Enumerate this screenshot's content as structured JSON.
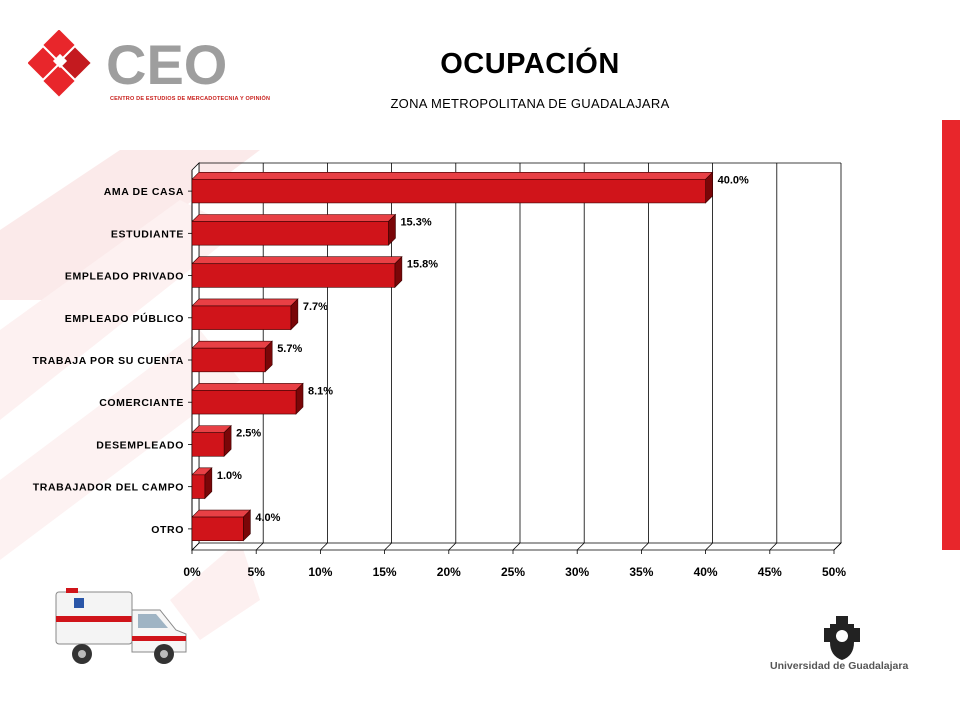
{
  "header": {
    "logo_text": "CEO",
    "logo_subtitle": "CENTRO DE ESTUDIOS DE MERCADOTECNIA Y OPINIÓN",
    "title": "OCUPACIÓN",
    "subtitle": "ZONA METROPOLITANA DE GUADALAJARA"
  },
  "footer": {
    "university": "Universidad de Guadalajara",
    "ambulance_icon": "ambulance-image",
    "crest_icon": "university-crest-icon"
  },
  "colors": {
    "bar": "#d0141a",
    "bar_dark": "#7a0608",
    "accent": "#e8262b"
  },
  "chart_data": {
    "type": "bar",
    "orientation": "horizontal",
    "categories": [
      "AMA DE CASA",
      "ESTUDIANTE",
      "EMPLEADO PRIVADO",
      "EMPLEADO PÚBLICO",
      "TRABAJA POR SU CUENTA",
      "COMERCIANTE",
      "DESEMPLEADO",
      "TRABAJADOR DEL CAMPO",
      "OTRO"
    ],
    "values": [
      40.0,
      15.3,
      15.8,
      7.7,
      5.7,
      8.1,
      2.5,
      1.0,
      4.0
    ],
    "value_labels": [
      "40.0%",
      "15.3%",
      "15.8%",
      "7.7%",
      "5.7%",
      "8.1%",
      "2.5%",
      "1.0%",
      "4.0%"
    ],
    "xlim": [
      0,
      50
    ],
    "xticks": [
      0,
      5,
      10,
      15,
      20,
      25,
      30,
      35,
      40,
      45,
      50
    ],
    "xtick_labels": [
      "0%",
      "5%",
      "10%",
      "15%",
      "20%",
      "25%",
      "30%",
      "35%",
      "40%",
      "45%",
      "50%"
    ],
    "grid": "vertical"
  }
}
